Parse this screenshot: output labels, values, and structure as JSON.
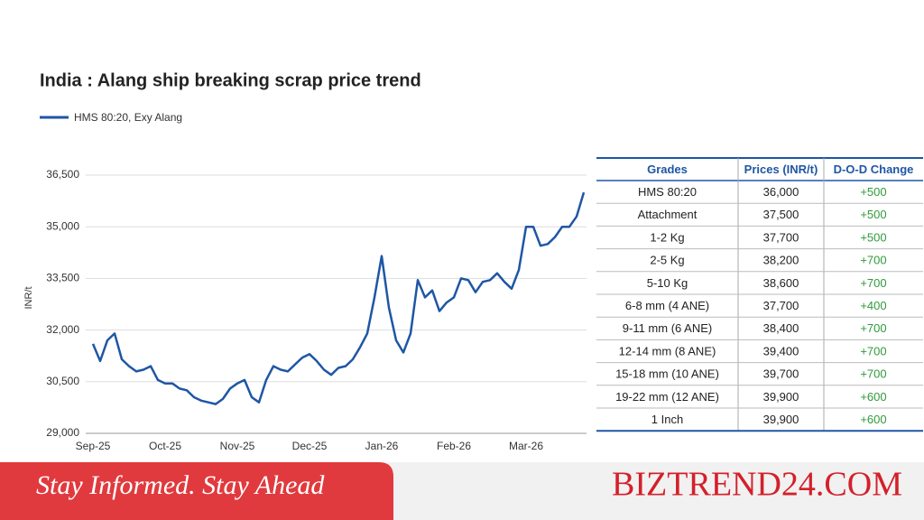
{
  "chart_data": {
    "type": "line",
    "title": "India : Alang ship breaking scrap price trend",
    "y_label": "INR/t",
    "categories": [
      "Sep-25",
      null,
      null,
      null,
      null,
      null,
      null,
      null,
      null,
      null,
      "Oct-25",
      null,
      null,
      null,
      null,
      null,
      null,
      null,
      null,
      null,
      "Nov-25",
      null,
      null,
      null,
      null,
      null,
      null,
      null,
      null,
      null,
      "Dec-25",
      null,
      null,
      null,
      null,
      null,
      null,
      null,
      null,
      null,
      "Jan-26",
      null,
      null,
      null,
      null,
      null,
      null,
      null,
      null,
      null,
      "Feb-26",
      null,
      null,
      null,
      null,
      null,
      null,
      null,
      null,
      null,
      "Mar-26",
      null,
      null,
      null,
      null,
      null,
      null,
      null,
      null
    ],
    "series": [
      {
        "name": "HMS 80:20, Exy Alang",
        "color": "#1f56a5",
        "values": [
          31600,
          31100,
          31700,
          31900,
          31150,
          30950,
          30800,
          30850,
          30950,
          30550,
          30450,
          30450,
          30300,
          30250,
          30050,
          29950,
          29900,
          29850,
          30000,
          30300,
          30450,
          30550,
          30050,
          29900,
          30550,
          30950,
          30850,
          30800,
          31000,
          31200,
          31300,
          31100,
          30850,
          30700,
          30900,
          30950,
          31150,
          31500,
          31900,
          32950,
          34150,
          32650,
          31700,
          31350,
          31900,
          33450,
          32950,
          33150,
          32550,
          32800,
          32950,
          33500,
          33450,
          33100,
          33400,
          33450,
          33650,
          33400,
          33200,
          33750,
          35000,
          35000,
          34450,
          34500,
          34700,
          35000,
          35000,
          35300,
          36000
        ]
      }
    ],
    "ylim": [
      29000,
      36500
    ],
    "yticks": [
      {
        "value": 29000,
        "label": "29,000"
      },
      {
        "value": 30500,
        "label": "30,500"
      },
      {
        "value": 32000,
        "label": "32,000"
      },
      {
        "value": 33500,
        "label": "33,500"
      },
      {
        "value": 35000,
        "label": "35,000"
      },
      {
        "value": 36500,
        "label": "36,500"
      }
    ],
    "grid": true
  },
  "table": {
    "header": [
      "Grades",
      "Prices (INR/t)",
      "D-O-D Change"
    ],
    "rows": [
      [
        "HMS 80:20",
        "36,000",
        "+500"
      ],
      [
        "Attachment",
        "37,500",
        "+500"
      ],
      [
        "1-2 Kg",
        "37,700",
        "+500"
      ],
      [
        "2-5 Kg",
        "38,200",
        "+700"
      ],
      [
        "5-10 Kg",
        "38,600",
        "+700"
      ],
      [
        "6-8 mm (4 ANE)",
        "37,700",
        "+400"
      ],
      [
        "9-11 mm (6 ANE)",
        "38,400",
        "+700"
      ],
      [
        "12-14 mm (8 ANE)",
        "39,400",
        "+700"
      ],
      [
        "15-18 mm (10 ANE)",
        "39,700",
        "+700"
      ],
      [
        "19-22 mm (12 ANE)",
        "39,900",
        "+600"
      ],
      [
        "1 Inch",
        "39,900",
        "+600"
      ]
    ]
  },
  "banner": {
    "tagline": "Stay Informed. Stay Ahead",
    "brand": "BIZTREND24.COM"
  }
}
